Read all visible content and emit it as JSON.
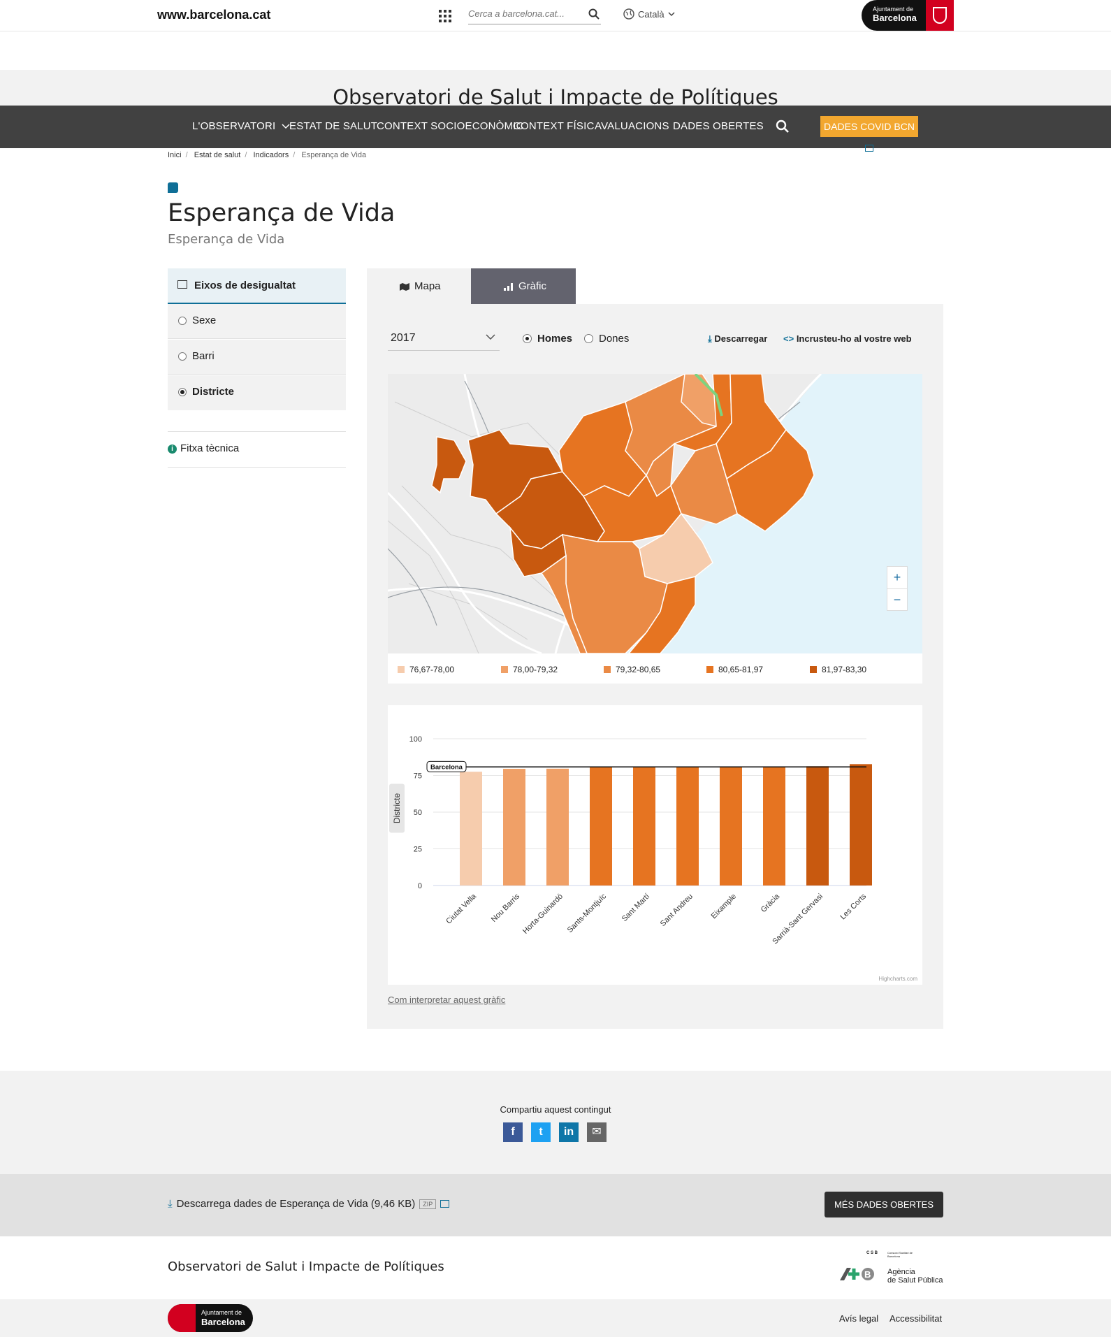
{
  "topbar": {
    "site_url": "www.barcelona.cat",
    "search_placeholder": "Cerca a barcelona.cat...",
    "language": "Català",
    "badge_line1": "Ajuntament de",
    "badge_line2": "Barcelona"
  },
  "site_title": "Observatori de Salut i Impacte de Polítiques",
  "nav": {
    "items": [
      "L'OBSERVATORI",
      "ESTAT DE SALUT",
      "CONTEXT SOCIOECONÒMIC",
      "CONTEXT FÍSIC",
      "AVALUACIONS",
      "DADES OBERTES"
    ],
    "covid_button": "DADES COVID BCN"
  },
  "breadcrumb": [
    "Inici",
    "Estat de salut",
    "Indicadors",
    "Esperança de Vida"
  ],
  "page": {
    "title": "Esperança de Vida",
    "subtitle": "Esperança de Vida"
  },
  "sidebar": {
    "heading": "Eixos de desigualtat",
    "options": [
      {
        "label": "Sexe",
        "selected": false
      },
      {
        "label": "Barri",
        "selected": false
      },
      {
        "label": "Districte",
        "selected": true
      }
    ],
    "fitxa": "Fitxa tècnica"
  },
  "tabs": {
    "map": "Mapa",
    "chart": "Gràfic"
  },
  "controls": {
    "year": "2017",
    "homes": "Homes",
    "dones": "Dones",
    "download": "Descarregar",
    "embed": "Incrusteu-ho al vostre web"
  },
  "map": {
    "legend": [
      {
        "label": "76,67-78,00",
        "color": "#f6ccad"
      },
      {
        "label": "78,00-79,32",
        "color": "#f0a067"
      },
      {
        "label": "79,32-80,65",
        "color": "#ea8a45"
      },
      {
        "label": "80,65-81,97",
        "color": "#e67421"
      },
      {
        "label": "81,97-83,30",
        "color": "#c8590f"
      }
    ],
    "zoom_in": "+",
    "zoom_out": "−"
  },
  "chart_data": {
    "type": "bar",
    "ylabel": "Districte",
    "ylim": [
      0,
      100
    ],
    "yticks": [
      0,
      25,
      50,
      75,
      100
    ],
    "categories": [
      "Ciutat Vella",
      "Nou Barris",
      "Horta-Guinardó",
      "Sants-Montjuïc",
      "Sant Martí",
      "Sant Andreu",
      "Eixample",
      "Gràcia",
      "Sarrià-Sant Gervasi",
      "Les Corts"
    ],
    "values": [
      77.5,
      79.5,
      79.6,
      80.7,
      80.7,
      80.8,
      81.2,
      81.2,
      81.3,
      82.7
    ],
    "colors": [
      "#f6ccad",
      "#f0a067",
      "#f0a067",
      "#e67421",
      "#e67421",
      "#e67421",
      "#e67421",
      "#e67421",
      "#c8590f",
      "#c8590f"
    ],
    "reference_line": {
      "label": "Barcelona",
      "value": 80.8
    },
    "credit": "Highcharts.com",
    "note": "Com interpretar aquest gràfic"
  },
  "share": {
    "title": "Compartiu aquest contingut",
    "buttons": [
      {
        "glyph": "f",
        "color": "#3b5998"
      },
      {
        "glyph": "t",
        "color": "#1da1f2"
      },
      {
        "glyph": "in",
        "color": "#0e76a8"
      },
      {
        "glyph": "✉",
        "color": "#666666"
      }
    ]
  },
  "download_band": {
    "text": "Descarrega dades de Esperança de Vida (9,46 KB)",
    "zip": "ZIP",
    "more_button": "MÉS DADES OBERTES"
  },
  "footer": {
    "title": "Observatori de Salut i Impacte de Polítiques",
    "aspb_csb": "C S B",
    "aspb_csb_sub": "Consorci Sanitari de Barcelona",
    "aspb_name1": "Agència",
    "aspb_name2": "de Salut Pública",
    "links": [
      "Avís legal",
      "Accessibilitat"
    ],
    "badge_line1": "Ajuntament de",
    "badge_line2": "Barcelona"
  }
}
